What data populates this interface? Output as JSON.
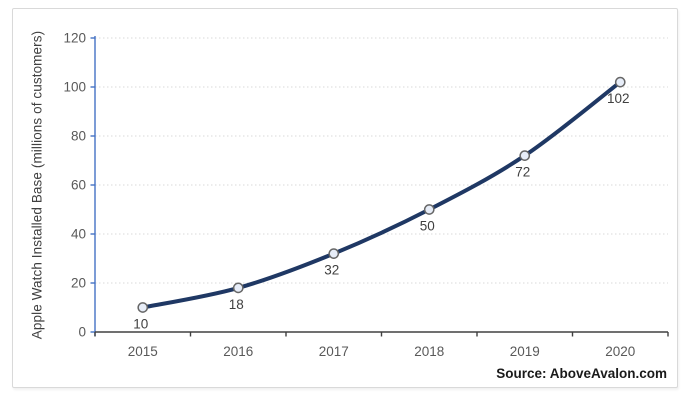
{
  "chart_data": {
    "type": "line",
    "title": "",
    "xlabel": "",
    "ylabel": "Apple Watch Installed Base (millions of customers)",
    "categories": [
      "2015",
      "2016",
      "2017",
      "2018",
      "2019",
      "2020"
    ],
    "series": [
      {
        "name": "Apple Watch Installed Base",
        "values": [
          10,
          18,
          32,
          50,
          72,
          102
        ]
      }
    ],
    "data_labels": [
      "10",
      "18",
      "32",
      "50",
      "72",
      "102"
    ],
    "data_label_position": "below",
    "ylim": [
      0,
      120
    ],
    "ytick_interval": 20,
    "yticks": [
      0,
      20,
      40,
      60,
      80,
      100,
      120
    ],
    "grid": "horizontal-dotted",
    "legend": "none"
  },
  "source_note": "Source: AboveAvalon.com",
  "colors": {
    "line": "#1F3864",
    "marker_fill": "#E7EDF8",
    "marker_border": "#666666",
    "y_axis": "#4472C4",
    "x_axis": "#404040",
    "gridline": "#D9D9D9",
    "axis_tick_label": "#595959",
    "data_label": "#404040",
    "frame_border": "#D9D9D9",
    "source_text": "#1A1A1A"
  }
}
